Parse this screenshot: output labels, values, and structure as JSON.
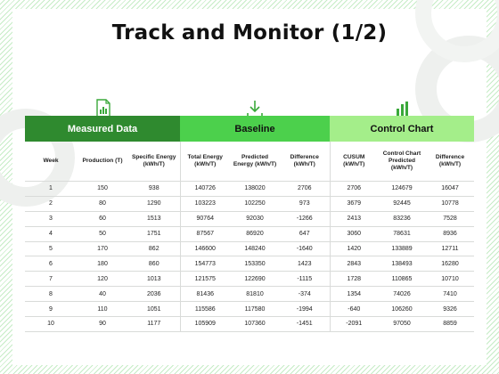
{
  "title": "Track and Monitor (1/2)",
  "colors": {
    "measured": "#2f8a2f",
    "baseline": "#4cd04c",
    "control": "#a4ee8a",
    "icon_green": "#3aa83a"
  },
  "groups": {
    "measured": "Measured Data",
    "baseline": "Baseline",
    "control": "Control Chart"
  },
  "icons": [
    "document-chart-icon",
    "download-arrow-icon",
    "bar-chart-icon"
  ],
  "headers": [
    "Week",
    "Production (T)",
    "Specific Energy (kWh/T)",
    "Total Energy (kWh/T)",
    "Predicted Energy (kWh/T)",
    "Difference (kWh/T)",
    "CUSUM (kWh/T)",
    "Control Chart Predicted (kWh/T)",
    "Difference (kWh/T)"
  ],
  "rows": [
    [
      "1",
      "150",
      "938",
      "140726",
      "138020",
      "2706",
      "2706",
      "124679",
      "16047"
    ],
    [
      "2",
      "80",
      "1290",
      "103223",
      "102250",
      "973",
      "3679",
      "92445",
      "10778"
    ],
    [
      "3",
      "60",
      "1513",
      "90764",
      "92030",
      "-1266",
      "2413",
      "83236",
      "7528"
    ],
    [
      "4",
      "50",
      "1751",
      "87567",
      "86920",
      "647",
      "3060",
      "78631",
      "8936"
    ],
    [
      "5",
      "170",
      "862",
      "146600",
      "148240",
      "-1640",
      "1420",
      "133889",
      "12711"
    ],
    [
      "6",
      "180",
      "860",
      "154773",
      "153350",
      "1423",
      "2843",
      "138493",
      "16280"
    ],
    [
      "7",
      "120",
      "1013",
      "121575",
      "122690",
      "-1115",
      "1728",
      "110865",
      "10710"
    ],
    [
      "8",
      "40",
      "2036",
      "81436",
      "81810",
      "-374",
      "1354",
      "74026",
      "7410"
    ],
    [
      "9",
      "110",
      "1051",
      "115586",
      "117580",
      "-1994",
      "-640",
      "106260",
      "9326"
    ],
    [
      "10",
      "90",
      "1177",
      "105909",
      "107360",
      "-1451",
      "-2091",
      "97050",
      "8859"
    ]
  ]
}
